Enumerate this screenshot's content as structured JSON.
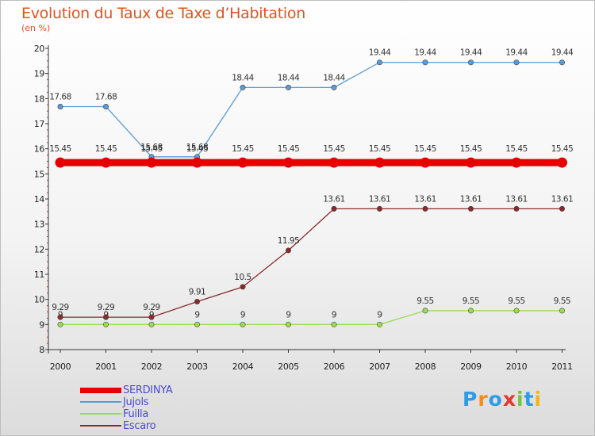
{
  "chart_data": {
    "type": "line",
    "title": "Evolution du Taux de Taxe d’Habitation",
    "subtitle": "(en %)",
    "x": [
      "2000",
      "2001",
      "2002",
      "2003",
      "2004",
      "2005",
      "2006",
      "2007",
      "2008",
      "2009",
      "2010",
      "2011"
    ],
    "ylim": [
      8,
      20
    ],
    "yticks": [
      8,
      9,
      10,
      11,
      12,
      13,
      14,
      15,
      16,
      17,
      18,
      19,
      20
    ],
    "grid": false,
    "legend_position": "bottom-left",
    "series": [
      {
        "name": "SERDINYA",
        "color": "#e60000",
        "emphasis": true,
        "values": [
          15.45,
          15.45,
          15.45,
          15.45,
          15.45,
          15.45,
          15.45,
          15.45,
          15.45,
          15.45,
          15.45,
          15.45
        ],
        "labels": [
          "15.45",
          "15.45",
          "15.45",
          "15.45",
          "15.45",
          "15.45",
          "15.45",
          "15.45",
          "15.45",
          "15.45",
          "15.45",
          "15.45"
        ]
      },
      {
        "name": "Jujols",
        "color": "#5b9bd5",
        "values": [
          17.68,
          17.68,
          15.68,
          15.68,
          18.44,
          18.44,
          18.44,
          19.44,
          19.44,
          19.44,
          19.44,
          19.44
        ],
        "labels": [
          "17.68",
          "17.68",
          "15.68",
          "15.68",
          "18.44",
          "18.44",
          "18.44",
          "19.44",
          "19.44",
          "19.44",
          "19.44",
          "19.44"
        ]
      },
      {
        "name": "Fuilla",
        "color": "#99dd55",
        "values": [
          9,
          9,
          9,
          9,
          9,
          9,
          9,
          9,
          9.55,
          9.55,
          9.55,
          9.55
        ],
        "labels": [
          "9",
          "9",
          "9",
          "9",
          "9",
          "9",
          "9",
          "9",
          "9.55",
          "9.55",
          "9.55",
          "9.55"
        ]
      },
      {
        "name": "Escaro",
        "color": "#8b2a2a",
        "values": [
          9.29,
          9.29,
          9.29,
          9.91,
          10.5,
          11.95,
          13.61,
          13.61,
          13.61,
          13.61,
          13.61,
          13.61
        ],
        "labels": [
          "9.29",
          "9.29",
          "9.29",
          "9.91",
          "10.5",
          "11.95",
          "13.61",
          "13.61",
          "13.61",
          "13.61",
          "13.61",
          "13.61"
        ]
      }
    ]
  },
  "brand": {
    "logo_letters": [
      "P",
      "r",
      "o",
      "x",
      "i",
      "t",
      "i"
    ],
    "logo_colors": [
      "#2e9be6",
      "#f28c1e",
      "#2e9be6",
      "#e33a2b",
      "#7cc144",
      "#2e9be6",
      "#f2b51e"
    ]
  }
}
